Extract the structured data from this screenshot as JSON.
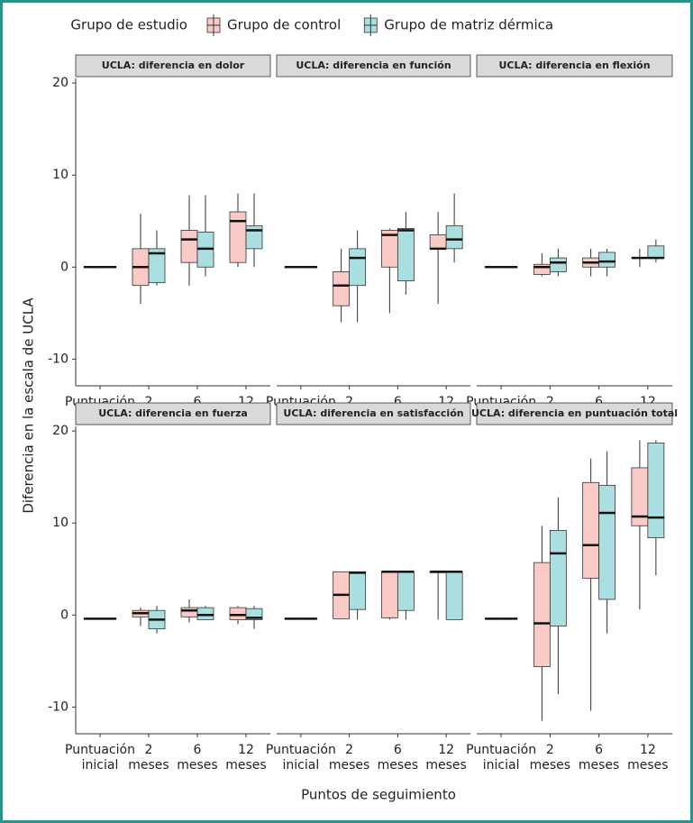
{
  "chart_data": {
    "type": "box",
    "legend_title": "Grupo de estudio",
    "x_label": "Puntos de seguimiento",
    "y_label": "Diferencia en la escala de UCLA",
    "categories": [
      "Puntuación inicial",
      "2 meses",
      "6 meses",
      "12 meses"
    ],
    "ylim": [
      -12.9,
      20.5
    ],
    "yticks": [
      -10,
      0,
      10,
      20
    ],
    "series": [
      {
        "name": "Grupo de control",
        "color": "#f8766d",
        "fill": "#f9c9c5"
      },
      {
        "name": "Grupo de matriz dérmica",
        "color": "#00bfc4",
        "fill": "#a9dfe0"
      }
    ],
    "facets": [
      {
        "title": "UCLA: diferencia en dolor",
        "boxes": [
          [
            [
              0,
              0,
              0,
              0,
              0
            ],
            [
              -4,
              -2,
              0,
              2,
              5.8
            ],
            [
              -2,
              0.5,
              3,
              4,
              7.8
            ],
            [
              0,
              0.5,
              5,
              6,
              8
            ]
          ],
          [
            [
              0,
              0,
              0,
              0,
              0
            ],
            [
              -2,
              -1.7,
              1.5,
              2,
              4
            ],
            [
              -1,
              0,
              2,
              3.8,
              7.8
            ],
            [
              0,
              2,
              4,
              4.5,
              8
            ]
          ]
        ]
      },
      {
        "title": "UCLA: diferencia en función",
        "boxes": [
          [
            [
              0,
              0,
              0,
              0,
              0
            ],
            [
              -6,
              -4.2,
              -2,
              -0.5,
              2
            ],
            [
              -5,
              0,
              3.5,
              4,
              4.2
            ],
            [
              -4,
              2,
              2,
              3.5,
              6
            ]
          ],
          [
            [
              0,
              0,
              0,
              0,
              0
            ],
            [
              -6,
              -2,
              1,
              2,
              4
            ],
            [
              -3,
              -1.5,
              4,
              4.2,
              6
            ],
            [
              0.5,
              2,
              3,
              4.5,
              8
            ]
          ]
        ]
      },
      {
        "title": "UCLA: diferencia en flexión",
        "boxes": [
          [
            [
              0,
              0,
              0,
              0,
              0
            ],
            [
              -1,
              -0.8,
              0,
              0.3,
              1.5
            ],
            [
              -1,
              0,
              0.5,
              1,
              2
            ],
            [
              0,
              1,
              1,
              1,
              2
            ]
          ],
          [
            [
              0,
              0,
              0,
              0,
              0
            ],
            [
              -1,
              -0.5,
              0.5,
              1,
              2
            ],
            [
              -1,
              0,
              0.6,
              1.6,
              2
            ],
            [
              0.5,
              1,
              1,
              2.3,
              3
            ]
          ]
        ]
      },
      {
        "title": "UCLA: diferencia en fuerza",
        "boxes": [
          [
            [
              -0.4,
              -0.4,
              -0.4,
              -0.4,
              -0.4
            ],
            [
              -1.2,
              -0.2,
              0.2,
              0.5,
              0.8
            ],
            [
              -0.8,
              -0.2,
              0.5,
              0.8,
              1.7
            ],
            [
              -1,
              -0.5,
              0,
              0.8,
              1
            ]
          ],
          [
            [
              -0.4,
              -0.4,
              -0.4,
              -0.4,
              -0.4
            ],
            [
              -2,
              -1.5,
              -0.5,
              0.5,
              1
            ],
            [
              -0.5,
              -0.5,
              0,
              0.8,
              1
            ],
            [
              -1.5,
              -0.5,
              -0.3,
              0.7,
              1
            ]
          ]
        ]
      },
      {
        "title": "UCLA: diferencia en satisfacción",
        "boxes": [
          [
            [
              -0.4,
              -0.4,
              -0.4,
              -0.4,
              -0.4
            ],
            [
              -0.4,
              -0.4,
              2.2,
              4.7,
              4.7
            ],
            [
              -0.5,
              -0.3,
              4.7,
              4.7,
              4.7
            ],
            [
              -0.5,
              4.6,
              4.7,
              4.7,
              4.8
            ]
          ],
          [
            [
              -0.4,
              -0.4,
              -0.4,
              -0.4,
              -0.4
            ],
            [
              -0.5,
              0.6,
              4.6,
              4.7,
              4.7
            ],
            [
              -0.5,
              0.5,
              4.7,
              4.7,
              4.7
            ],
            [
              -0.5,
              -0.5,
              4.7,
              4.7,
              4.8
            ]
          ]
        ]
      },
      {
        "title": "UCLA: diferencia en puntuación total",
        "boxes": [
          [
            [
              -0.4,
              -0.4,
              -0.4,
              -0.4,
              -0.4
            ],
            [
              -11.5,
              -5.6,
              -0.9,
              5.7,
              9.7
            ],
            [
              -10.4,
              4,
              7.6,
              14.4,
              17
            ],
            [
              0.6,
              9.7,
              10.7,
              16,
              19
            ]
          ],
          [
            [
              -0.4,
              -0.4,
              -0.4,
              -0.4,
              -0.4
            ],
            [
              -8.6,
              -1.2,
              6.7,
              9.2,
              12.8
            ],
            [
              -2,
              1.7,
              11.1,
              14.1,
              17.8
            ],
            [
              4.3,
              8.4,
              10.6,
              18.7,
              19
            ]
          ]
        ]
      }
    ]
  }
}
